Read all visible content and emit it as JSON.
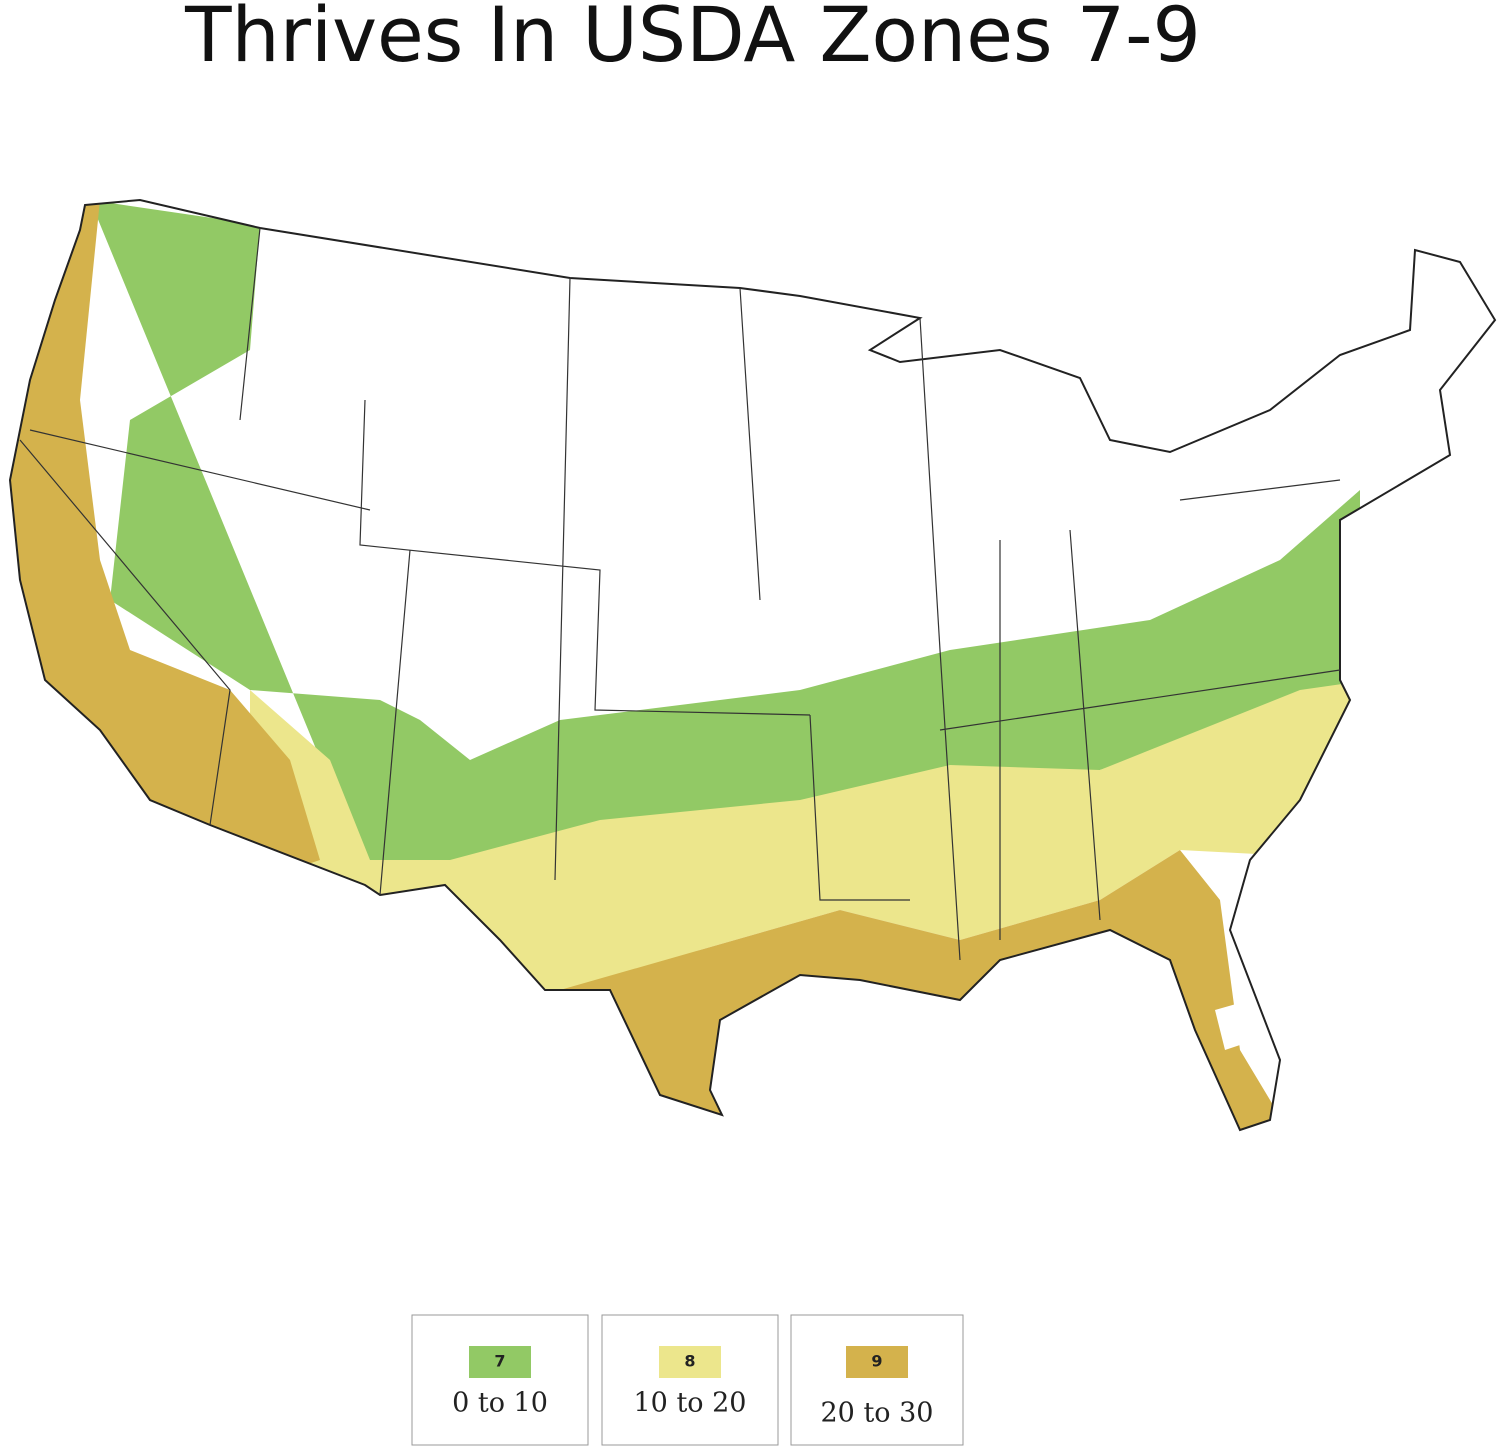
{
  "title": "Thrives In USDA Zones 7-9",
  "legend": [
    {
      "zone": "7",
      "range": "0 to 10",
      "color": "#92c965"
    },
    {
      "zone": "8",
      "range": "10 to 20",
      "color": "#ece68c"
    },
    {
      "zone": "9",
      "range": "20 to 30",
      "color": "#d4b24c"
    }
  ]
}
